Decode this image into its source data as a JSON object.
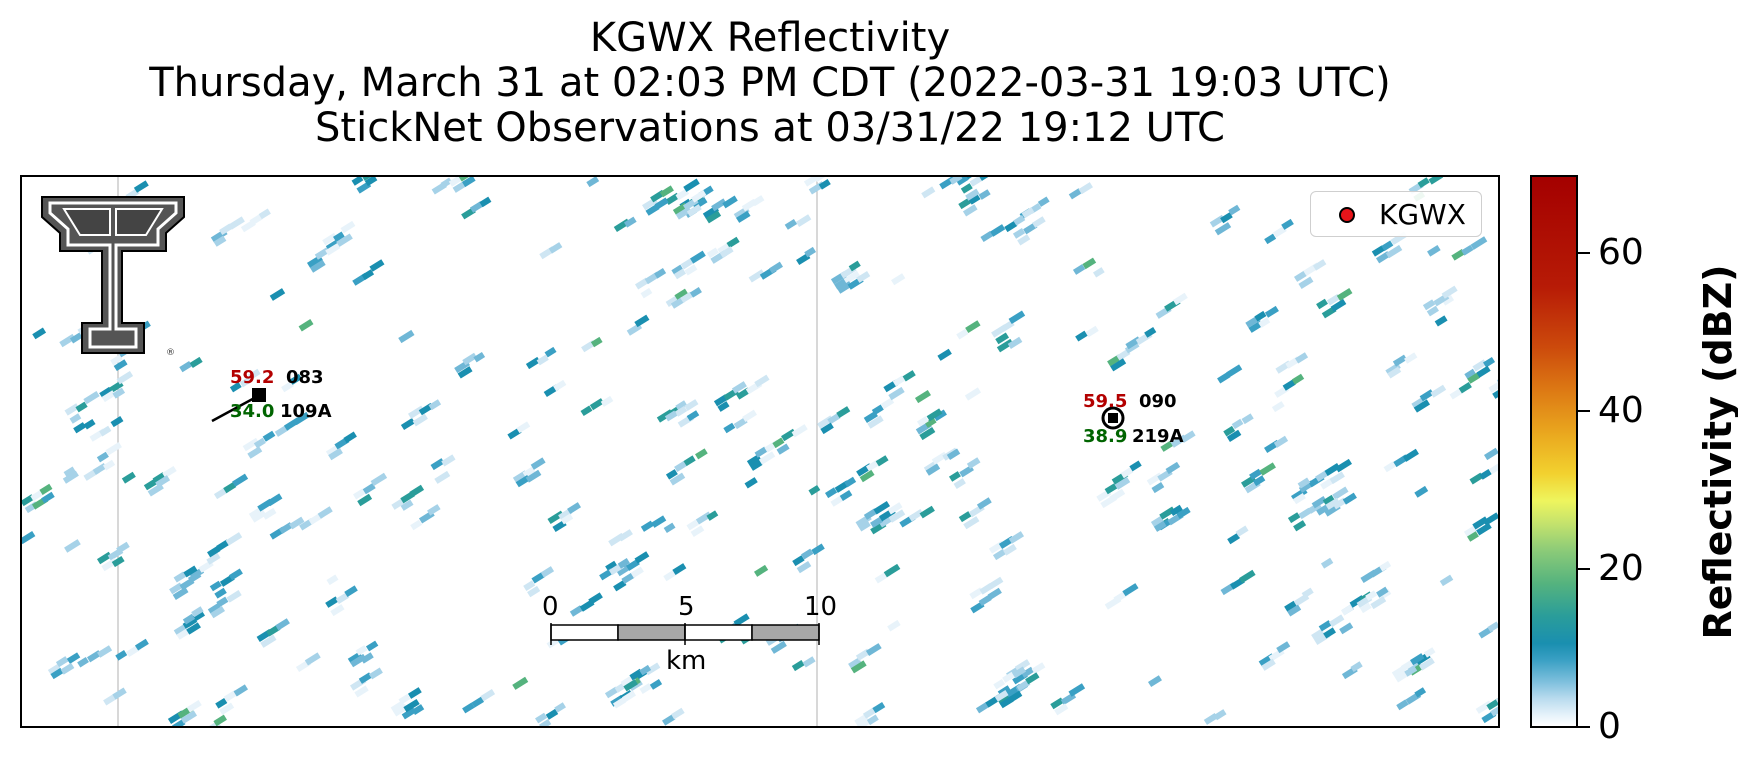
{
  "title": {
    "line1": "KGWX Reflectivity",
    "line2": "Thursday, March 31 at 02:03 PM CDT (2022-03-31 19:03 UTC)",
    "line3": "StickNet Observations at 03/31/22 19:12 UTC"
  },
  "legend": {
    "label": "KGWX",
    "marker_color": "#e8141a"
  },
  "stations": [
    {
      "temperature": "59.2",
      "dewpoint": "34.0",
      "wind_id": "083",
      "station_id": "109A"
    },
    {
      "temperature": "59.5",
      "dewpoint": "38.9",
      "wind_id": "090",
      "station_id": "219A"
    }
  ],
  "scale_bar": {
    "ticks": [
      "0",
      "5",
      "10"
    ],
    "unit": "km"
  },
  "colorbar": {
    "label": "Reflectivity (dBZ)",
    "ticks": [
      "0",
      "20",
      "40",
      "60"
    ],
    "range": [
      0,
      70
    ]
  },
  "colors": {
    "temperature_text": "#b30000",
    "dewpoint_text": "#006400",
    "reflectivity_low": "#1a8fb0",
    "reflectivity_mid": "#55b37e"
  },
  "logo": {
    "type": "texas-tech-double-t-logo"
  }
}
